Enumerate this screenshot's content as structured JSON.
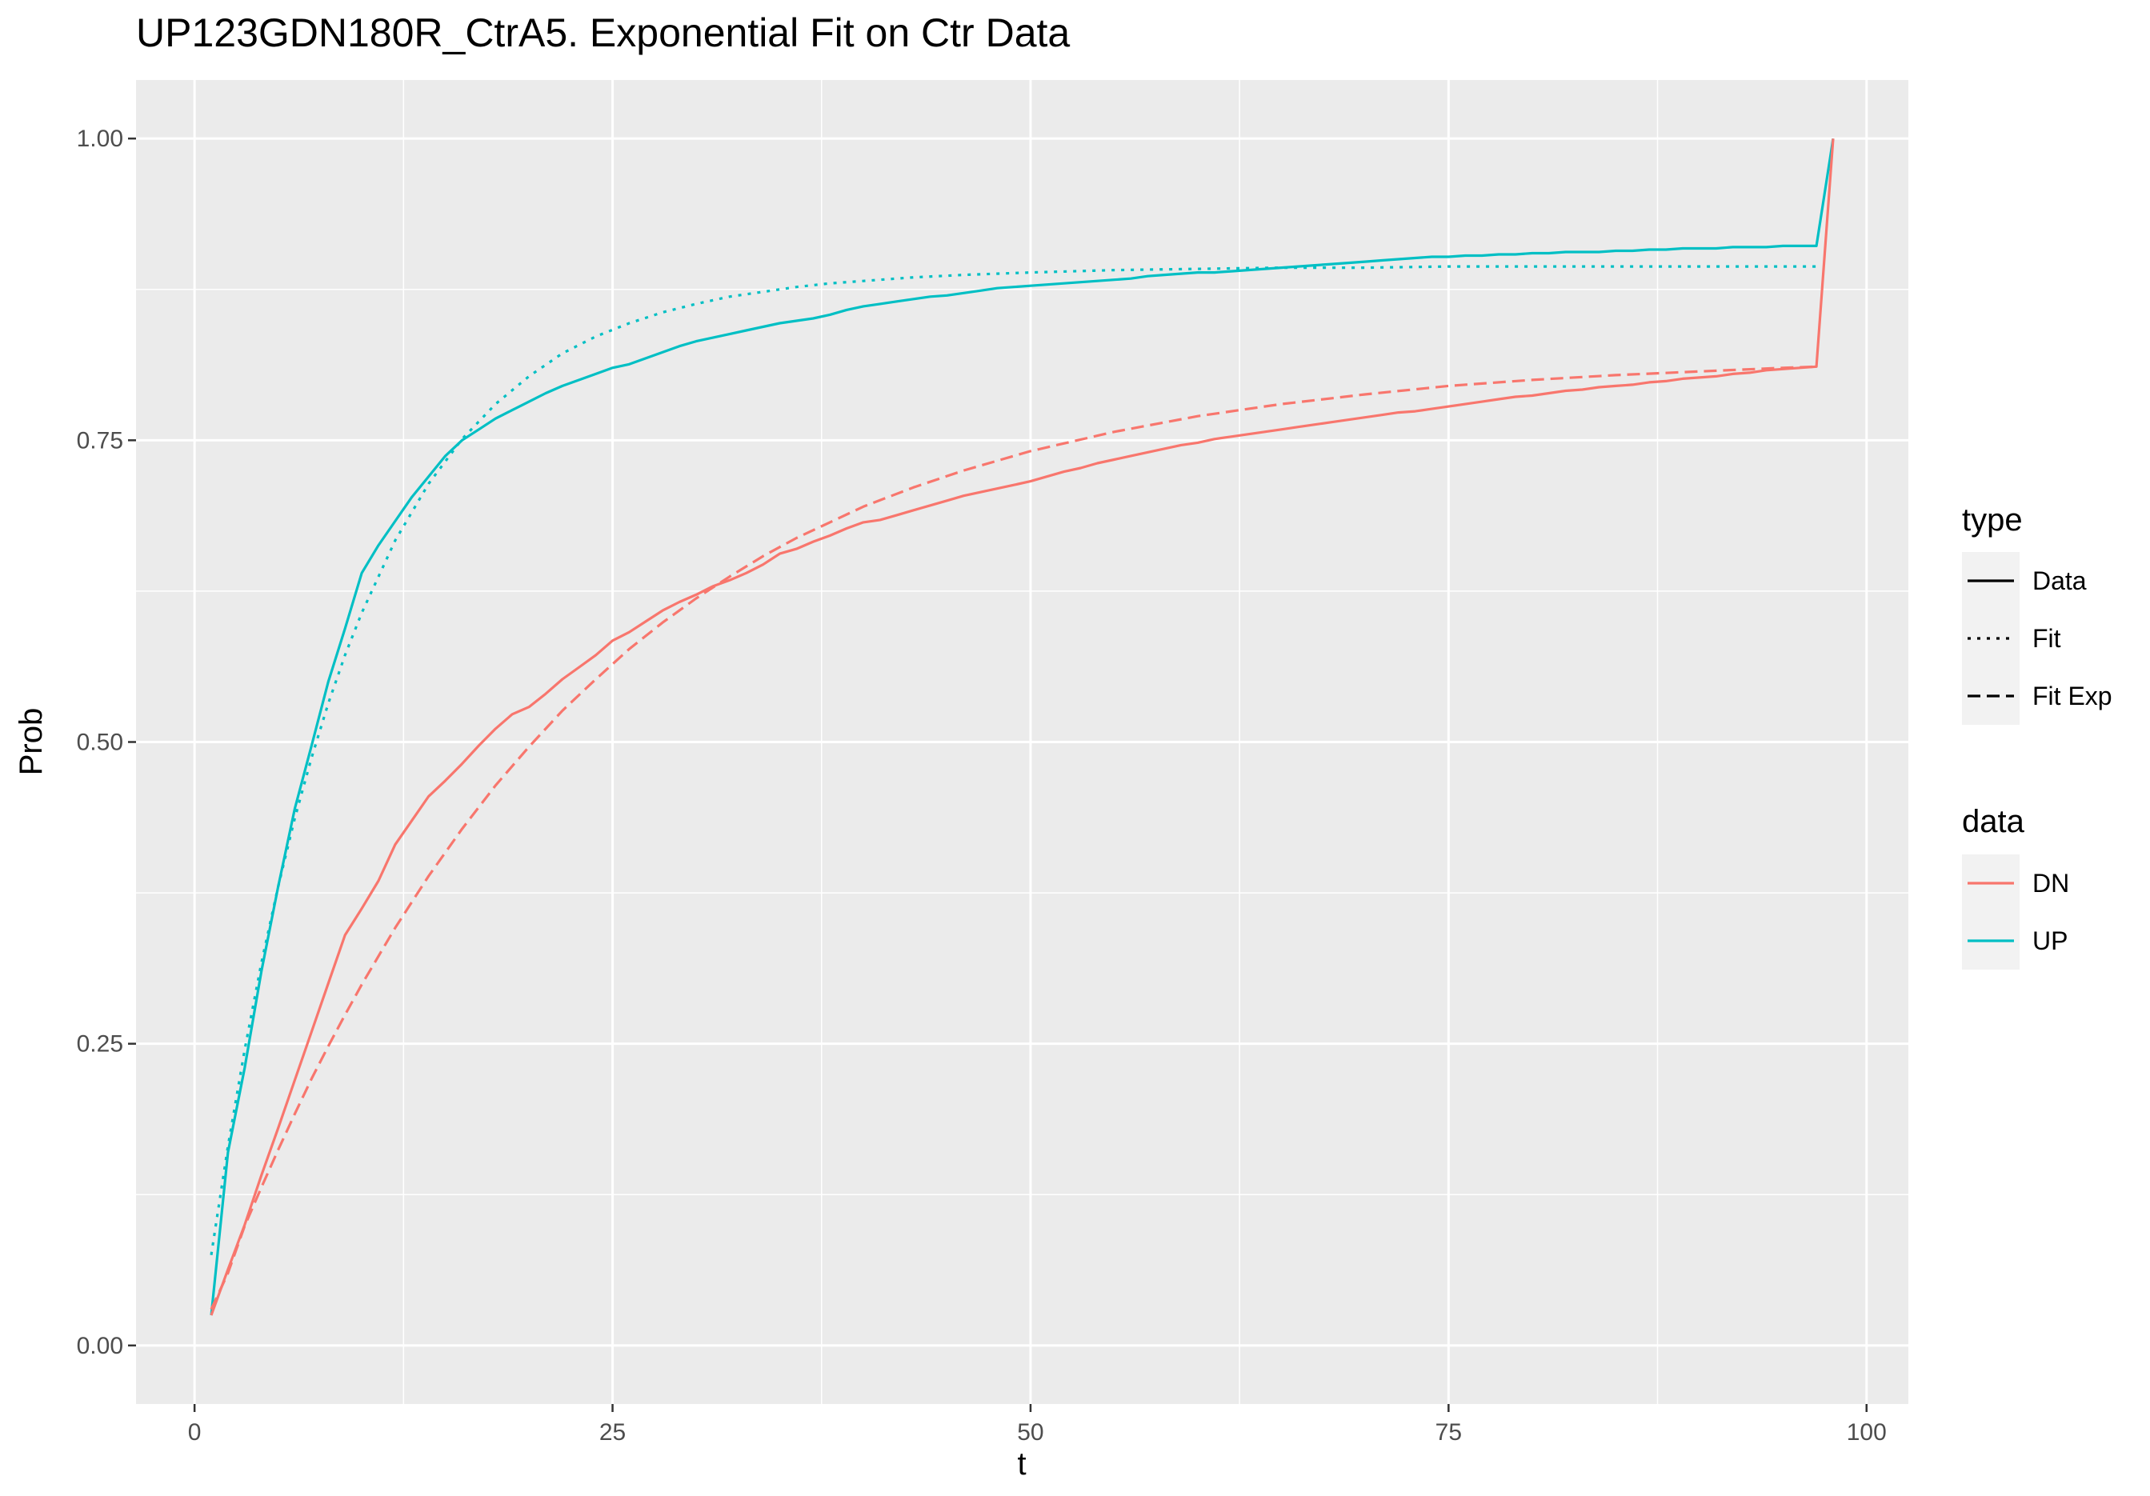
{
  "chart_data": {
    "type": "line",
    "title": "UP123GDN180R_CtrA5. Exponential Fit on Ctr Data",
    "xlabel": "t",
    "ylabel": "Prob",
    "xlim": [
      -3.5,
      102.5
    ],
    "ylim": [
      -0.0485,
      1.0485
    ],
    "x_ticks": [
      0,
      25,
      50,
      75,
      100
    ],
    "x_tick_labels": [
      "0",
      "25",
      "50",
      "75",
      "100"
    ],
    "y_ticks": [
      0.0,
      0.25,
      0.5,
      0.75,
      1.0
    ],
    "y_tick_labels": [
      "0.00",
      "0.25",
      "0.50",
      "0.75",
      "1.00"
    ],
    "grid": true,
    "background": "#EBEBEB",
    "legend_placement": "right",
    "legend": {
      "type": {
        "title": "type",
        "entries": [
          {
            "label": "Data",
            "linetype": "solid"
          },
          {
            "label": "Fit",
            "linetype": "dotted"
          },
          {
            "label": "Fit Exp",
            "linetype": "dashed"
          }
        ]
      },
      "data": {
        "title": "data",
        "entries": [
          {
            "label": "DN",
            "color": "#F8766D"
          },
          {
            "label": "UP",
            "color": "#00BFC4"
          }
        ]
      }
    },
    "series": [
      {
        "data": "UP",
        "type": "Data",
        "color": "#00BFC4",
        "linetype": "solid",
        "x": [
          1,
          2,
          3,
          4,
          5,
          6,
          7,
          8,
          9,
          10,
          11,
          12,
          13,
          14,
          15,
          16,
          17,
          18,
          19,
          20,
          21,
          22,
          23,
          24,
          25,
          26,
          27,
          28,
          29,
          30,
          31,
          32,
          33,
          34,
          35,
          36,
          37,
          38,
          39,
          40,
          41,
          42,
          43,
          44,
          45,
          46,
          47,
          48,
          49,
          50,
          51,
          52,
          53,
          54,
          55,
          56,
          57,
          58,
          59,
          60,
          61,
          62,
          63,
          64,
          65,
          66,
          67,
          68,
          69,
          70,
          71,
          72,
          73,
          74,
          75,
          76,
          77,
          78,
          79,
          80,
          81,
          82,
          83,
          84,
          85,
          86,
          87,
          88,
          89,
          90,
          91,
          92,
          93,
          94,
          95,
          96,
          97,
          98
        ],
        "y": [
          0.025,
          0.16,
          0.23,
          0.31,
          0.38,
          0.445,
          0.497,
          0.55,
          0.594,
          0.64,
          0.663,
          0.683,
          0.703,
          0.72,
          0.737,
          0.75,
          0.759,
          0.768,
          0.775,
          0.782,
          0.789,
          0.795,
          0.8,
          0.805,
          0.81,
          0.813,
          0.818,
          0.823,
          0.828,
          0.832,
          0.835,
          0.838,
          0.841,
          0.844,
          0.847,
          0.849,
          0.851,
          0.854,
          0.858,
          0.861,
          0.863,
          0.865,
          0.867,
          0.869,
          0.87,
          0.872,
          0.874,
          0.876,
          0.877,
          0.878,
          0.879,
          0.88,
          0.881,
          0.882,
          0.883,
          0.884,
          0.886,
          0.887,
          0.888,
          0.889,
          0.889,
          0.89,
          0.891,
          0.892,
          0.893,
          0.894,
          0.895,
          0.896,
          0.897,
          0.898,
          0.899,
          0.9,
          0.901,
          0.902,
          0.902,
          0.903,
          0.903,
          0.904,
          0.904,
          0.905,
          0.905,
          0.906,
          0.906,
          0.906,
          0.907,
          0.907,
          0.908,
          0.908,
          0.909,
          0.909,
          0.909,
          0.91,
          0.91,
          0.91,
          0.911,
          0.911,
          0.911,
          1.0
        ]
      },
      {
        "data": "UP",
        "type": "Fit",
        "color": "#00BFC4",
        "linetype": "dotted",
        "x": [
          1,
          2,
          3,
          4,
          5,
          6,
          7,
          8,
          9,
          10,
          12,
          14,
          16,
          18,
          20,
          22,
          24,
          26,
          28,
          30,
          32,
          34,
          36,
          38,
          40,
          43,
          46,
          50,
          55,
          60,
          65,
          70,
          75,
          80,
          85,
          90,
          95,
          97
        ],
        "y": [
          0.075,
          0.165,
          0.245,
          0.317,
          0.38,
          0.437,
          0.487,
          0.532,
          0.572,
          0.607,
          0.667,
          0.714,
          0.751,
          0.78,
          0.803,
          0.822,
          0.836,
          0.847,
          0.856,
          0.863,
          0.869,
          0.873,
          0.877,
          0.88,
          0.882,
          0.885,
          0.887,
          0.889,
          0.891,
          0.892,
          0.893,
          0.893,
          0.894,
          0.894,
          0.894,
          0.894,
          0.894,
          0.894
        ]
      },
      {
        "data": "DN",
        "type": "Data",
        "color": "#F8766D",
        "linetype": "solid",
        "x": [
          1,
          2,
          3,
          4,
          5,
          6,
          7,
          8,
          9,
          10,
          11,
          12,
          13,
          14,
          15,
          16,
          17,
          18,
          19,
          20,
          21,
          22,
          23,
          24,
          25,
          26,
          27,
          28,
          29,
          30,
          31,
          32,
          33,
          34,
          35,
          36,
          37,
          38,
          39,
          40,
          41,
          42,
          43,
          44,
          45,
          46,
          47,
          48,
          49,
          50,
          51,
          52,
          53,
          54,
          55,
          56,
          57,
          58,
          59,
          60,
          61,
          62,
          63,
          64,
          65,
          66,
          67,
          68,
          69,
          70,
          71,
          72,
          73,
          74,
          75,
          76,
          77,
          78,
          79,
          80,
          81,
          82,
          83,
          84,
          85,
          86,
          87,
          88,
          89,
          90,
          91,
          92,
          93,
          94,
          95,
          96,
          97,
          98
        ],
        "y": [
          0.025,
          0.063,
          0.1,
          0.141,
          0.18,
          0.22,
          0.26,
          0.3,
          0.34,
          0.362,
          0.385,
          0.415,
          0.435,
          0.455,
          0.468,
          0.482,
          0.497,
          0.511,
          0.523,
          0.529,
          0.54,
          0.552,
          0.562,
          0.572,
          0.584,
          0.591,
          0.6,
          0.609,
          0.616,
          0.622,
          0.629,
          0.634,
          0.64,
          0.647,
          0.656,
          0.66,
          0.666,
          0.671,
          0.677,
          0.682,
          0.684,
          0.688,
          0.692,
          0.696,
          0.7,
          0.704,
          0.707,
          0.71,
          0.713,
          0.716,
          0.72,
          0.724,
          0.727,
          0.731,
          0.734,
          0.737,
          0.74,
          0.743,
          0.746,
          0.748,
          0.751,
          0.753,
          0.755,
          0.757,
          0.759,
          0.761,
          0.763,
          0.765,
          0.767,
          0.769,
          0.771,
          0.773,
          0.774,
          0.776,
          0.778,
          0.78,
          0.782,
          0.784,
          0.786,
          0.787,
          0.789,
          0.791,
          0.792,
          0.794,
          0.795,
          0.796,
          0.798,
          0.799,
          0.801,
          0.802,
          0.803,
          0.805,
          0.806,
          0.808,
          0.809,
          0.81,
          0.811,
          1.0
        ]
      },
      {
        "data": "DN",
        "type": "Fit Exp",
        "color": "#F8766D",
        "linetype": "dashed",
        "x": [
          1,
          2,
          3,
          4,
          5,
          6,
          7,
          8,
          9,
          10,
          12,
          14,
          16,
          18,
          20,
          22,
          24,
          26,
          28,
          30,
          32,
          34,
          36,
          38,
          40,
          43,
          46,
          50,
          55,
          60,
          65,
          70,
          75,
          80,
          85,
          90,
          95,
          97
        ],
        "y": [
          0.03,
          0.06,
          0.099,
          0.131,
          0.162,
          0.192,
          0.221,
          0.248,
          0.274,
          0.299,
          0.346,
          0.389,
          0.428,
          0.464,
          0.496,
          0.526,
          0.552,
          0.577,
          0.599,
          0.619,
          0.637,
          0.654,
          0.669,
          0.682,
          0.695,
          0.711,
          0.725,
          0.741,
          0.757,
          0.77,
          0.78,
          0.788,
          0.795,
          0.8,
          0.804,
          0.807,
          0.81,
          0.811
        ]
      }
    ]
  }
}
